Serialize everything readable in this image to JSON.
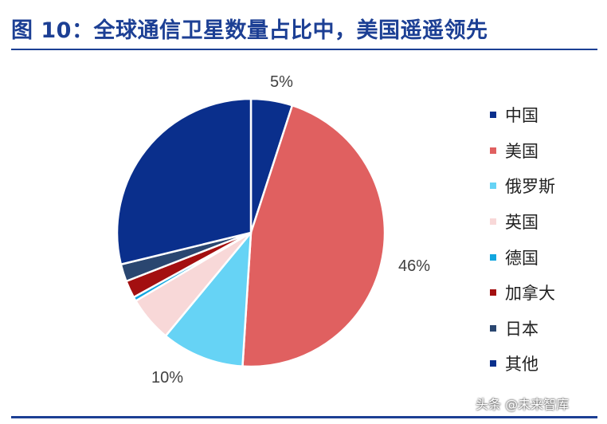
{
  "title": "图 10：全球通信卫星数量占比中，美国遥遥领先",
  "watermark": "头条 @未来智库",
  "chart_data": {
    "type": "pie",
    "title": "",
    "series": [
      {
        "name": "中国",
        "value": 5,
        "color": "#0a2f8c"
      },
      {
        "name": "美国",
        "value": 46,
        "color": "#e06060"
      },
      {
        "name": "俄罗斯",
        "value": 10,
        "color": "#66d3f5"
      },
      {
        "name": "英国",
        "value": 5.5,
        "color": "#f8d8d8"
      },
      {
        "name": "德国",
        "value": 0.5,
        "color": "#12a6df"
      },
      {
        "name": "加拿大",
        "value": 2.1,
        "color": "#a30f10"
      },
      {
        "name": "日本",
        "value": 2.1,
        "color": "#2a4670"
      },
      {
        "name": "其他",
        "value": 28.8,
        "color": "#0a2f8c"
      }
    ],
    "data_labels": {
      "中国": "5%",
      "美国": "46%",
      "俄罗斯": "10%"
    },
    "legend": "right"
  }
}
